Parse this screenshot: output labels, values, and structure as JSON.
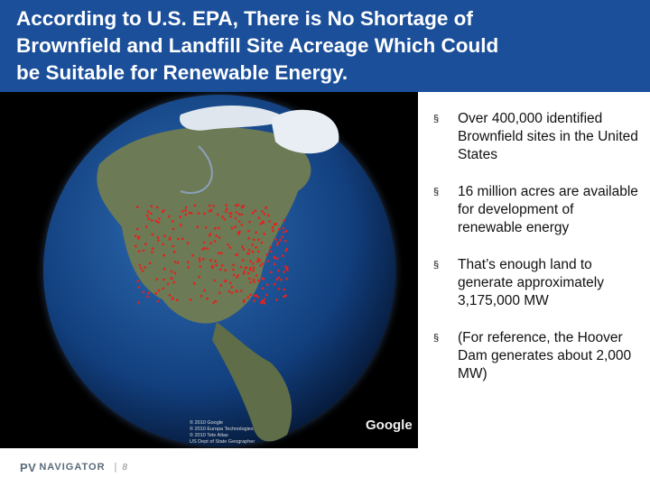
{
  "header": {
    "title_lines": [
      "According to U.S. EPA, There is No Shortage of",
      "Brownfield and Landfill Site Acreage Which Could",
      "be Suitable for Renewable Energy."
    ]
  },
  "image": {
    "credits": [
      "© 2010 Google",
      "© 2010 Europa Technologies",
      "© 2010 Tele Atlas",
      "US Dept of State Geographer"
    ],
    "logo": "Google"
  },
  "bullets": [
    "Over 400,000 identified Brownfield sites in the United States",
    "16 million acres are available for development of renewable energy",
    "That’s enough land to generate approximately 3,175,000 MW",
    "(For reference, the Hoover Dam generates about 2,000 MW)"
  ],
  "footer": {
    "brand": "PV",
    "brand_name": "NAVIGATOR",
    "page": "8"
  }
}
